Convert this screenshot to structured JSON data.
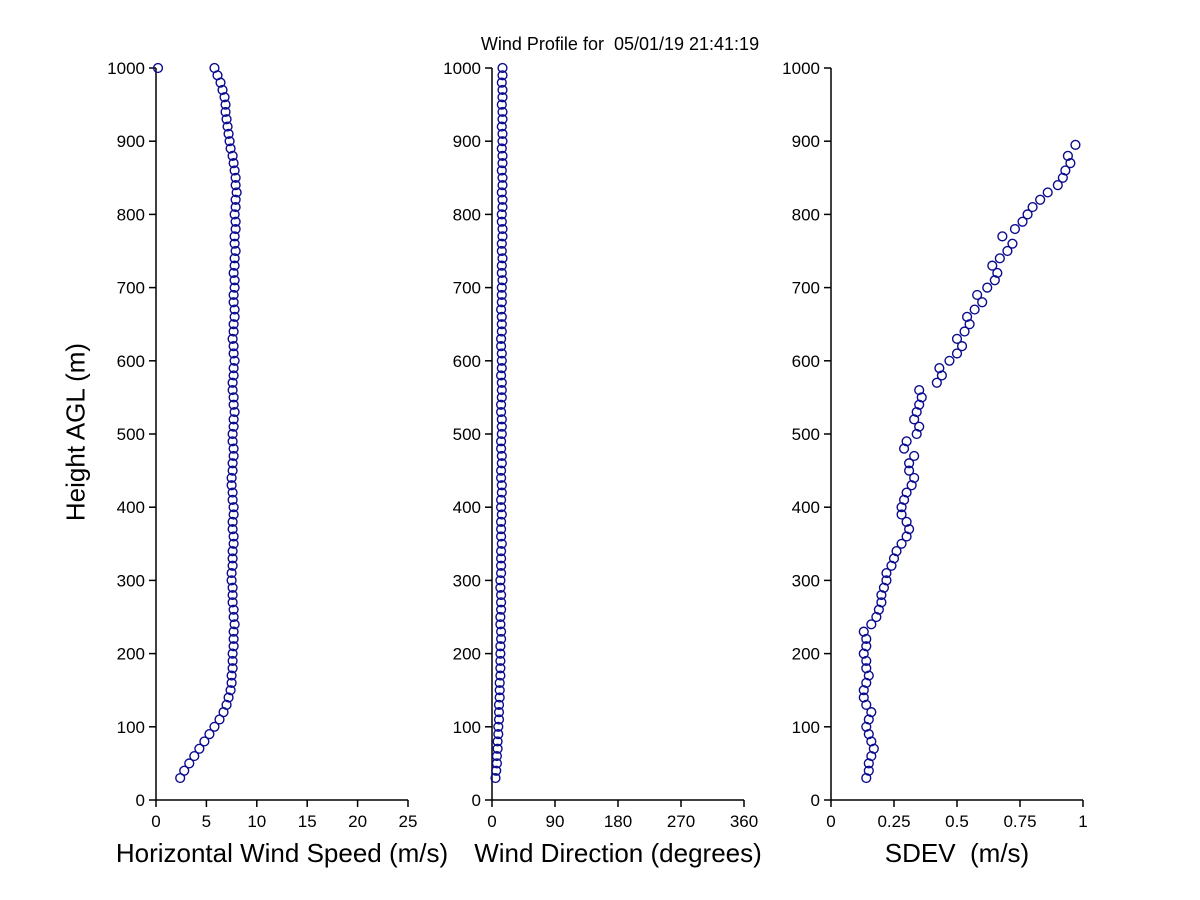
{
  "colors": {
    "marker": "#0b0b8f",
    "axis": "#000000",
    "background": "#ffffff",
    "text": "#000000"
  },
  "chart_data": [
    {
      "type": "scatter",
      "name": "horizontal-wind-speed",
      "xlabel": "Horizontal Wind Speed (m/s)",
      "ylabel": "Height AGL (m)",
      "xlim": [
        0,
        25
      ],
      "ylim": [
        0,
        1000
      ],
      "xticks": [
        0,
        5,
        10,
        15,
        20,
        25
      ],
      "yticks": [
        0,
        100,
        200,
        300,
        400,
        500,
        600,
        700,
        800,
        900,
        1000
      ],
      "marker": "circle",
      "legend": null,
      "grid": false,
      "points": [
        [
          2.4,
          30
        ],
        [
          2.8,
          40
        ],
        [
          3.3,
          50
        ],
        [
          3.8,
          60
        ],
        [
          4.3,
          70
        ],
        [
          4.8,
          80
        ],
        [
          5.3,
          90
        ],
        [
          5.8,
          100
        ],
        [
          6.3,
          110
        ],
        [
          6.7,
          120
        ],
        [
          7.0,
          130
        ],
        [
          7.2,
          140
        ],
        [
          7.4,
          150
        ],
        [
          7.5,
          160
        ],
        [
          7.5,
          170
        ],
        [
          7.6,
          180
        ],
        [
          7.6,
          190
        ],
        [
          7.6,
          200
        ],
        [
          7.7,
          210
        ],
        [
          7.7,
          220
        ],
        [
          7.7,
          230
        ],
        [
          7.8,
          240
        ],
        [
          7.7,
          250
        ],
        [
          7.7,
          260
        ],
        [
          7.6,
          270
        ],
        [
          7.6,
          280
        ],
        [
          7.6,
          290
        ],
        [
          7.5,
          300
        ],
        [
          7.5,
          310
        ],
        [
          7.6,
          320
        ],
        [
          7.6,
          330
        ],
        [
          7.6,
          340
        ],
        [
          7.7,
          350
        ],
        [
          7.7,
          360
        ],
        [
          7.6,
          370
        ],
        [
          7.6,
          380
        ],
        [
          7.7,
          390
        ],
        [
          7.7,
          400
        ],
        [
          7.6,
          410
        ],
        [
          7.6,
          420
        ],
        [
          7.5,
          430
        ],
        [
          7.5,
          440
        ],
        [
          7.6,
          450
        ],
        [
          7.6,
          460
        ],
        [
          7.7,
          470
        ],
        [
          7.7,
          480
        ],
        [
          7.6,
          490
        ],
        [
          7.6,
          500
        ],
        [
          7.7,
          510
        ],
        [
          7.7,
          520
        ],
        [
          7.8,
          530
        ],
        [
          7.7,
          540
        ],
        [
          7.7,
          550
        ],
        [
          7.6,
          560
        ],
        [
          7.6,
          570
        ],
        [
          7.7,
          580
        ],
        [
          7.7,
          590
        ],
        [
          7.8,
          600
        ],
        [
          7.7,
          610
        ],
        [
          7.7,
          620
        ],
        [
          7.6,
          630
        ],
        [
          7.7,
          640
        ],
        [
          7.7,
          650
        ],
        [
          7.8,
          660
        ],
        [
          7.8,
          670
        ],
        [
          7.7,
          680
        ],
        [
          7.7,
          690
        ],
        [
          7.8,
          700
        ],
        [
          7.8,
          710
        ],
        [
          7.7,
          720
        ],
        [
          7.8,
          730
        ],
        [
          7.8,
          740
        ],
        [
          7.9,
          750
        ],
        [
          7.8,
          760
        ],
        [
          7.8,
          770
        ],
        [
          7.9,
          780
        ],
        [
          7.9,
          790
        ],
        [
          7.8,
          800
        ],
        [
          7.9,
          810
        ],
        [
          7.9,
          820
        ],
        [
          8.0,
          830
        ],
        [
          7.9,
          840
        ],
        [
          7.9,
          850
        ],
        [
          7.8,
          860
        ],
        [
          7.7,
          870
        ],
        [
          7.6,
          880
        ],
        [
          7.4,
          890
        ],
        [
          7.3,
          900
        ],
        [
          7.2,
          910
        ],
        [
          7.1,
          920
        ],
        [
          7.0,
          930
        ],
        [
          6.9,
          940
        ],
        [
          6.9,
          950
        ],
        [
          6.8,
          960
        ],
        [
          6.6,
          970
        ],
        [
          6.4,
          980
        ],
        [
          6.1,
          990
        ],
        [
          5.8,
          1000
        ],
        [
          0.2,
          1000
        ]
      ]
    },
    {
      "type": "scatter",
      "name": "wind-direction",
      "title": "Wind Profile for  05/01/19 21:41:19",
      "xlabel": "Wind Direction (degrees)",
      "xlim": [
        0,
        360
      ],
      "ylim": [
        0,
        1000
      ],
      "xticks": [
        0,
        90,
        180,
        270,
        360
      ],
      "yticks": [
        0,
        100,
        200,
        300,
        400,
        500,
        600,
        700,
        800,
        900,
        1000
      ],
      "marker": "circle",
      "legend": null,
      "grid": false,
      "points": [
        [
          5,
          30
        ],
        [
          6,
          40
        ],
        [
          7,
          50
        ],
        [
          7,
          60
        ],
        [
          8,
          70
        ],
        [
          8,
          80
        ],
        [
          9,
          90
        ],
        [
          9,
          100
        ],
        [
          10,
          110
        ],
        [
          10,
          120
        ],
        [
          10,
          130
        ],
        [
          11,
          140
        ],
        [
          11,
          150
        ],
        [
          11,
          160
        ],
        [
          12,
          170
        ],
        [
          12,
          180
        ],
        [
          12,
          190
        ],
        [
          12,
          200
        ],
        [
          12,
          210
        ],
        [
          13,
          220
        ],
        [
          13,
          230
        ],
        [
          12,
          240
        ],
        [
          12,
          250
        ],
        [
          13,
          260
        ],
        [
          13,
          270
        ],
        [
          13,
          280
        ],
        [
          12,
          290
        ],
        [
          12,
          300
        ],
        [
          13,
          310
        ],
        [
          13,
          320
        ],
        [
          13,
          330
        ],
        [
          13,
          340
        ],
        [
          14,
          350
        ],
        [
          13,
          360
        ],
        [
          13,
          370
        ],
        [
          13,
          380
        ],
        [
          14,
          390
        ],
        [
          13,
          400
        ],
        [
          13,
          410
        ],
        [
          14,
          420
        ],
        [
          14,
          430
        ],
        [
          13,
          440
        ],
        [
          13,
          450
        ],
        [
          14,
          460
        ],
        [
          14,
          470
        ],
        [
          13,
          480
        ],
        [
          13,
          490
        ],
        [
          14,
          500
        ],
        [
          14,
          510
        ],
        [
          14,
          520
        ],
        [
          13,
          530
        ],
        [
          13,
          540
        ],
        [
          14,
          550
        ],
        [
          14,
          560
        ],
        [
          14,
          570
        ],
        [
          13,
          580
        ],
        [
          14,
          590
        ],
        [
          14,
          600
        ],
        [
          14,
          610
        ],
        [
          13,
          620
        ],
        [
          13,
          630
        ],
        [
          14,
          640
        ],
        [
          14,
          650
        ],
        [
          14,
          660
        ],
        [
          13,
          670
        ],
        [
          14,
          680
        ],
        [
          14,
          690
        ],
        [
          14,
          700
        ],
        [
          15,
          710
        ],
        [
          14,
          720
        ],
        [
          14,
          730
        ],
        [
          15,
          740
        ],
        [
          14,
          750
        ],
        [
          14,
          760
        ],
        [
          15,
          770
        ],
        [
          15,
          780
        ],
        [
          14,
          790
        ],
        [
          14,
          800
        ],
        [
          15,
          810
        ],
        [
          15,
          820
        ],
        [
          14,
          830
        ],
        [
          15,
          840
        ],
        [
          15,
          850
        ],
        [
          14,
          860
        ],
        [
          15,
          870
        ],
        [
          15,
          880
        ],
        [
          14,
          890
        ],
        [
          15,
          900
        ],
        [
          15,
          910
        ],
        [
          14,
          920
        ],
        [
          15,
          930
        ],
        [
          15,
          940
        ],
        [
          14,
          950
        ],
        [
          15,
          960
        ],
        [
          15,
          970
        ],
        [
          14,
          980
        ],
        [
          15,
          990
        ],
        [
          15,
          1000
        ]
      ]
    },
    {
      "type": "scatter",
      "name": "sdev",
      "xlabel": "SDEV  (m/s)",
      "xlim": [
        0,
        1
      ],
      "ylim": [
        0,
        1000
      ],
      "xticks": [
        0,
        0.25,
        0.5,
        0.75,
        1
      ],
      "yticks": [
        0,
        100,
        200,
        300,
        400,
        500,
        600,
        700,
        800,
        900,
        1000
      ],
      "marker": "circle",
      "legend": null,
      "grid": false,
      "points": [
        [
          0.14,
          30
        ],
        [
          0.15,
          40
        ],
        [
          0.15,
          50
        ],
        [
          0.16,
          60
        ],
        [
          0.17,
          70
        ],
        [
          0.16,
          80
        ],
        [
          0.15,
          90
        ],
        [
          0.14,
          100
        ],
        [
          0.15,
          110
        ],
        [
          0.16,
          120
        ],
        [
          0.14,
          130
        ],
        [
          0.13,
          140
        ],
        [
          0.13,
          150
        ],
        [
          0.14,
          160
        ],
        [
          0.15,
          170
        ],
        [
          0.14,
          180
        ],
        [
          0.14,
          190
        ],
        [
          0.13,
          200
        ],
        [
          0.14,
          210
        ],
        [
          0.14,
          220
        ],
        [
          0.13,
          230
        ],
        [
          0.16,
          240
        ],
        [
          0.18,
          250
        ],
        [
          0.19,
          260
        ],
        [
          0.2,
          270
        ],
        [
          0.2,
          280
        ],
        [
          0.21,
          290
        ],
        [
          0.22,
          300
        ],
        [
          0.22,
          310
        ],
        [
          0.24,
          320
        ],
        [
          0.25,
          330
        ],
        [
          0.26,
          340
        ],
        [
          0.28,
          350
        ],
        [
          0.3,
          360
        ],
        [
          0.31,
          370
        ],
        [
          0.3,
          380
        ],
        [
          0.28,
          390
        ],
        [
          0.28,
          400
        ],
        [
          0.29,
          410
        ],
        [
          0.3,
          420
        ],
        [
          0.32,
          430
        ],
        [
          0.33,
          440
        ],
        [
          0.31,
          450
        ],
        [
          0.31,
          460
        ],
        [
          0.33,
          470
        ],
        [
          0.29,
          480
        ],
        [
          0.3,
          490
        ],
        [
          0.34,
          500
        ],
        [
          0.35,
          510
        ],
        [
          0.33,
          520
        ],
        [
          0.34,
          530
        ],
        [
          0.35,
          540
        ],
        [
          0.36,
          550
        ],
        [
          0.35,
          560
        ],
        [
          0.42,
          570
        ],
        [
          0.44,
          580
        ],
        [
          0.43,
          590
        ],
        [
          0.47,
          600
        ],
        [
          0.5,
          610
        ],
        [
          0.52,
          620
        ],
        [
          0.5,
          630
        ],
        [
          0.53,
          640
        ],
        [
          0.55,
          650
        ],
        [
          0.54,
          660
        ],
        [
          0.57,
          670
        ],
        [
          0.6,
          680
        ],
        [
          0.58,
          690
        ],
        [
          0.62,
          700
        ],
        [
          0.65,
          710
        ],
        [
          0.66,
          720
        ],
        [
          0.64,
          730
        ],
        [
          0.67,
          740
        ],
        [
          0.7,
          750
        ],
        [
          0.72,
          760
        ],
        [
          0.68,
          770
        ],
        [
          0.73,
          780
        ],
        [
          0.76,
          790
        ],
        [
          0.78,
          800
        ],
        [
          0.8,
          810
        ],
        [
          0.83,
          820
        ],
        [
          0.86,
          830
        ],
        [
          0.9,
          840
        ],
        [
          0.92,
          850
        ],
        [
          0.93,
          860
        ],
        [
          0.95,
          870
        ],
        [
          0.94,
          880
        ],
        [
          0.97,
          895
        ]
      ]
    }
  ]
}
